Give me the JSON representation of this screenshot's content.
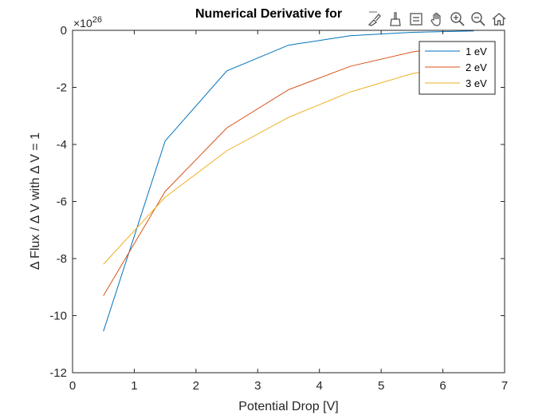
{
  "window": {
    "toolbar": [
      {
        "icon": "brush-edit-icon"
      },
      {
        "icon": "brush-icon"
      },
      {
        "icon": "data-tip-icon"
      },
      {
        "icon": "pan-hand-icon"
      },
      {
        "icon": "zoom-in-icon"
      },
      {
        "icon": "zoom-out-icon"
      },
      {
        "icon": "home-icon"
      }
    ]
  },
  "chart_data": {
    "type": "line",
    "title": "Numerical Derivative for",
    "xlabel": "Potential Drop [V]",
    "ylabel": "Δ Flux / Δ V with Δ V = 1",
    "y_exponent_base": "×10",
    "y_exponent_power": "26",
    "xlim": [
      0,
      7
    ],
    "ylim": [
      -12,
      0
    ],
    "xticks": [
      "0",
      "1",
      "2",
      "3",
      "4",
      "5",
      "6",
      "7"
    ],
    "yticks": [
      "0",
      "-2",
      "-4",
      "-6",
      "-8",
      "-10",
      "-12"
    ],
    "x": [
      0.5,
      1.5,
      2.5,
      3.5,
      4.5,
      5.5,
      6.5
    ],
    "legend_position": "top-right",
    "series": [
      {
        "name": "1 eV",
        "color": "#0072bd",
        "values": [
          -10.55,
          -3.88,
          -1.42,
          -0.52,
          -0.19,
          -0.07,
          -0.02
        ]
      },
      {
        "name": "2 eV",
        "color": "#d95319",
        "values": [
          -9.3,
          -5.65,
          -3.42,
          -2.08,
          -1.26,
          -0.76,
          -0.46
        ]
      },
      {
        "name": "3 eV",
        "color": "#edb120",
        "values": [
          -8.2,
          -5.85,
          -4.22,
          -3.05,
          -2.16,
          -1.52,
          -1.1
        ]
      }
    ]
  }
}
